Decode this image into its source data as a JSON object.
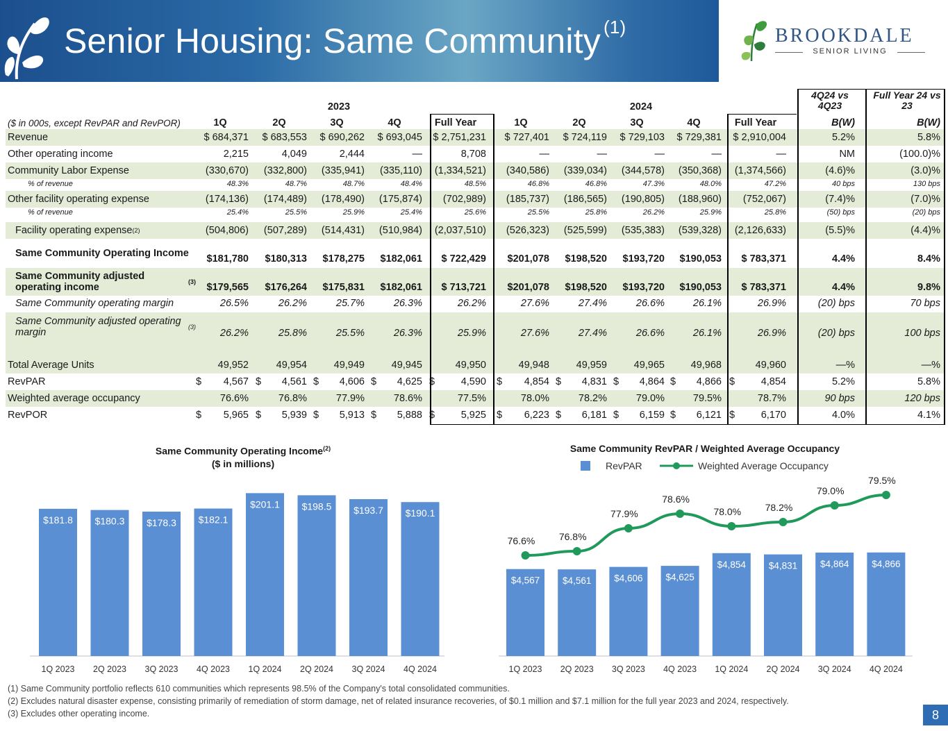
{
  "header": {
    "title": "Senior Housing: Same Community",
    "title_sup": "(1)",
    "brand_name": "BROOKDALE",
    "brand_sub": "SENIOR LIVING"
  },
  "table": {
    "year_headers": [
      "2023",
      "2024"
    ],
    "cmp_headers": [
      "4Q24 vs 4Q23",
      "Full Year 24 vs 23"
    ],
    "col_headers": [
      "($ in 000s, except RevPAR and RevPOR)",
      "1Q",
      "2Q",
      "3Q",
      "4Q",
      "Full Year",
      "1Q",
      "2Q",
      "3Q",
      "4Q",
      "Full Year",
      "B(W)",
      "B(W)"
    ],
    "rows": [
      {
        "label": "Revenue",
        "values": [
          "$ 684,371",
          "$ 683,553",
          "$ 690,262",
          "$ 693,045",
          "$ 2,751,231",
          "$ 727,401",
          "$ 724,119",
          "$ 729,103",
          "$ 729,381",
          "$ 2,910,004",
          "5.2%",
          "5.8%"
        ]
      },
      {
        "label": "Other operating income",
        "values": [
          "2,215",
          "4,049",
          "2,444",
          "—",
          "8,708",
          "—",
          "—",
          "—",
          "—",
          "—",
          "NM",
          "(100.0)%"
        ]
      },
      {
        "label": "Community Labor Expense",
        "values": [
          "(330,670)",
          "(332,800)",
          "(335,941)",
          "(335,110)",
          "(1,334,521)",
          "(340,586)",
          "(339,034)",
          "(344,578)",
          "(350,368)",
          "(1,374,566)",
          "(4.6)%",
          "(3.0)%"
        ]
      },
      {
        "label": "% of revenue",
        "values": [
          "48.3%",
          "48.7%",
          "48.7%",
          "48.4%",
          "48.5%",
          "46.8%",
          "46.8%",
          "47.3%",
          "48.0%",
          "47.2%",
          "40 bps",
          "130 bps"
        ]
      },
      {
        "label": "Other facility operating expense",
        "values": [
          "(174,136)",
          "(174,489)",
          "(178,490)",
          "(175,874)",
          "(702,989)",
          "(185,737)",
          "(186,565)",
          "(190,805)",
          "(188,960)",
          "(752,067)",
          "(7.4)%",
          "(7.0)%"
        ]
      },
      {
        "label": "% of revenue",
        "values": [
          "25.4%",
          "25.5%",
          "25.9%",
          "25.4%",
          "25.6%",
          "25.5%",
          "25.8%",
          "26.2%",
          "25.9%",
          "25.8%",
          "(50) bps",
          "(20) bps"
        ]
      },
      {
        "label": "Facility operating expense",
        "label_sup": "(2)",
        "values": [
          "(504,806)",
          "(507,289)",
          "(514,431)",
          "(510,984)",
          "(2,037,510)",
          "(526,323)",
          "(525,599)",
          "(535,383)",
          "(539,328)",
          "(2,126,633)",
          "(5.5)%",
          "(4.4)%"
        ]
      },
      {
        "label": "Same Community Operating Income",
        "values": [
          "$181,780",
          "$180,313",
          "$178,275",
          "$182,061",
          "$ 722,429",
          "$201,078",
          "$198,520",
          "$193,720",
          "$190,053",
          "$ 783,371",
          "4.4%",
          "8.4%"
        ]
      },
      {
        "label": "Same Community adjusted operating income",
        "label_sup": "(3)",
        "values": [
          "$179,565",
          "$176,264",
          "$175,831",
          "$182,061",
          "$ 713,721",
          "$201,078",
          "$198,520",
          "$193,720",
          "$190,053",
          "$ 783,371",
          "4.4%",
          "9.8%"
        ]
      },
      {
        "label": "Same Community operating margin",
        "values": [
          "26.5%",
          "26.2%",
          "25.7%",
          "26.3%",
          "26.2%",
          "27.6%",
          "27.4%",
          "26.6%",
          "26.1%",
          "26.9%",
          "(20) bps",
          "70 bps"
        ]
      },
      {
        "label": "Same Community adjusted operating margin",
        "label_sup": "(3)",
        "values": [
          "26.2%",
          "25.8%",
          "25.5%",
          "26.3%",
          "25.9%",
          "27.6%",
          "27.4%",
          "26.6%",
          "26.1%",
          "26.9%",
          "(20) bps",
          "100 bps"
        ]
      },
      {
        "label": "Total Average Units",
        "values": [
          "49,952",
          "49,954",
          "49,949",
          "49,945",
          "49,950",
          "49,948",
          "49,959",
          "49,965",
          "49,968",
          "49,960",
          "—%",
          "—%"
        ]
      },
      {
        "label": "RevPAR",
        "values": [
          "4,567",
          "4,561",
          "4,606",
          "4,625",
          "4,590",
          "4,854",
          "4,831",
          "4,864",
          "4,866",
          "4,854",
          "5.2%",
          "5.8%"
        ]
      },
      {
        "label": "Weighted average occupancy",
        "values": [
          "76.6%",
          "76.8%",
          "77.9%",
          "78.6%",
          "77.5%",
          "78.0%",
          "78.2%",
          "79.0%",
          "79.5%",
          "78.7%",
          "90 bps",
          "120 bps"
        ]
      },
      {
        "label": "RevPOR",
        "values": [
          "5,965",
          "5,939",
          "5,913",
          "5,888",
          "5,925",
          "6,223",
          "6,181",
          "6,159",
          "6,121",
          "6,170",
          "4.0%",
          "4.1%"
        ]
      }
    ],
    "dollar_sign": "$"
  },
  "chart_data": [
    {
      "type": "bar",
      "title": "Same Community Operating  Income",
      "title_sup": "(2)",
      "subtitle": "($ in millions)",
      "categories": [
        "1Q 2023",
        "2Q 2023",
        "3Q 2023",
        "4Q 2023",
        "1Q 2024",
        "2Q 2024",
        "3Q 2024",
        "4Q 2024"
      ],
      "values": [
        181.8,
        180.3,
        178.3,
        182.1,
        201.1,
        198.5,
        193.7,
        190.1
      ],
      "labels": [
        "$181.8",
        "$180.3",
        "$178.3",
        "$182.1",
        "$201.1",
        "$198.5",
        "$193.7",
        "$190.1"
      ],
      "ylim": [
        0,
        210
      ],
      "bar_color": "#5b8fd4"
    },
    {
      "type": "bar+line",
      "title": "Same Community RevPAR / Weighted Average Occupancy",
      "categories": [
        "1Q 2023",
        "2Q 2023",
        "3Q 2023",
        "4Q 2023",
        "1Q 2024",
        "2Q 2024",
        "3Q 2024",
        "4Q 2024"
      ],
      "series": [
        {
          "name": "RevPAR",
          "type": "bar",
          "values": [
            4567,
            4561,
            4606,
            4625,
            4854,
            4831,
            4864,
            4866
          ],
          "labels": [
            "$4,567",
            "$4,561",
            "$4,606",
            "$4,625",
            "$4,854",
            "$4,831",
            "$4,864",
            "$4,866"
          ],
          "color": "#5b8fd4"
        },
        {
          "name": "Weighted Average Occupancy",
          "type": "line",
          "values": [
            76.6,
            76.8,
            77.9,
            78.6,
            78.0,
            78.2,
            79.0,
            79.5
          ],
          "labels": [
            "76.6%",
            "76.8%",
            "77.9%",
            "78.6%",
            "78.0%",
            "78.2%",
            "79.0%",
            "79.5%"
          ],
          "color": "#1f9a5a"
        }
      ],
      "legend": "top",
      "bar_ylim": [
        3000,
        5200
      ],
      "line_ylim": [
        72,
        80.5
      ]
    }
  ],
  "footnotes": [
    "(1) Same Community portfolio reflects 610 communities which represents 98.5% of the Company's total consolidated communities.",
    "(2) Excludes natural disaster expense, consisting primarily of remediation of storm damage, net of related insurance recoveries, of $0.1 million and $7.1 million for the full year 2023 and 2024, respectively.",
    "(3) Excludes other operating income."
  ],
  "page_number": "8"
}
